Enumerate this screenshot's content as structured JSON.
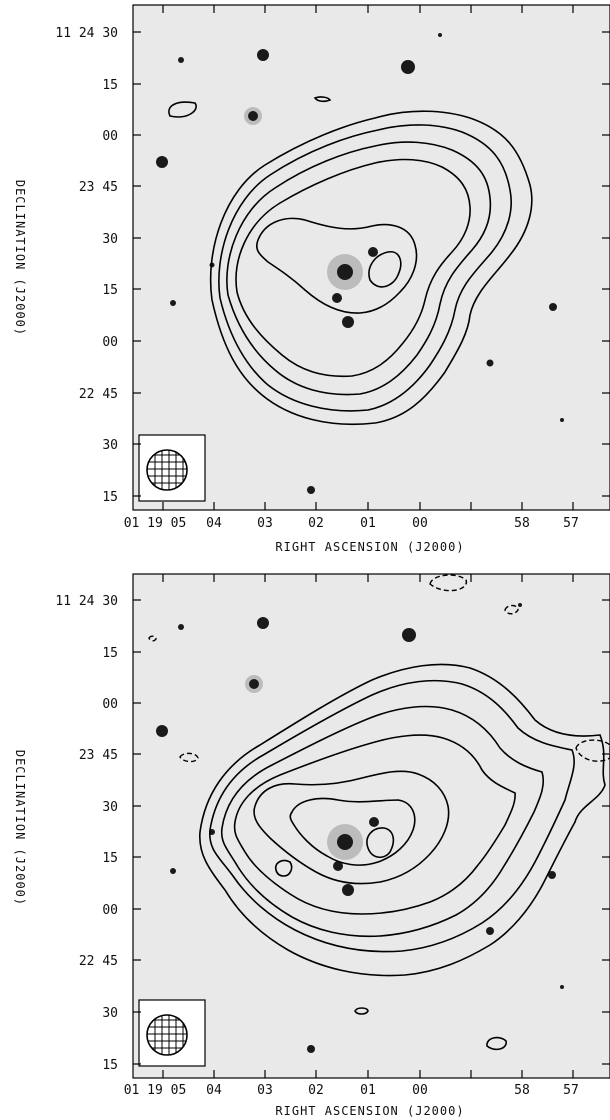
{
  "panels": [
    {
      "dec_ticks": [
        "11 24 30",
        "15",
        "00",
        "23 45",
        "30",
        "15",
        "00",
        "22 45",
        "30",
        "15"
      ],
      "ra_ticks": [
        "01 19 05",
        "04",
        "03",
        "02",
        "01",
        "00",
        "58",
        "57"
      ],
      "xlabel": "RIGHT ASCENSION (J2000)",
      "ylabel": "DECLINATION (J2000)"
    },
    {
      "dec_ticks": [
        "11 24 30",
        "15",
        "00",
        "23 45",
        "30",
        "15",
        "00",
        "22 45",
        "30",
        "15"
      ],
      "ra_ticks": [
        "01 19 05",
        "04",
        "03",
        "02",
        "01",
        "00",
        "58",
        "57"
      ],
      "xlabel": "RIGHT ASCENSION (J2000)",
      "ylabel": "DECLINATION (J2000)"
    }
  ],
  "icons": {
    "beam": "hatched-beam-ellipse-icon"
  }
}
